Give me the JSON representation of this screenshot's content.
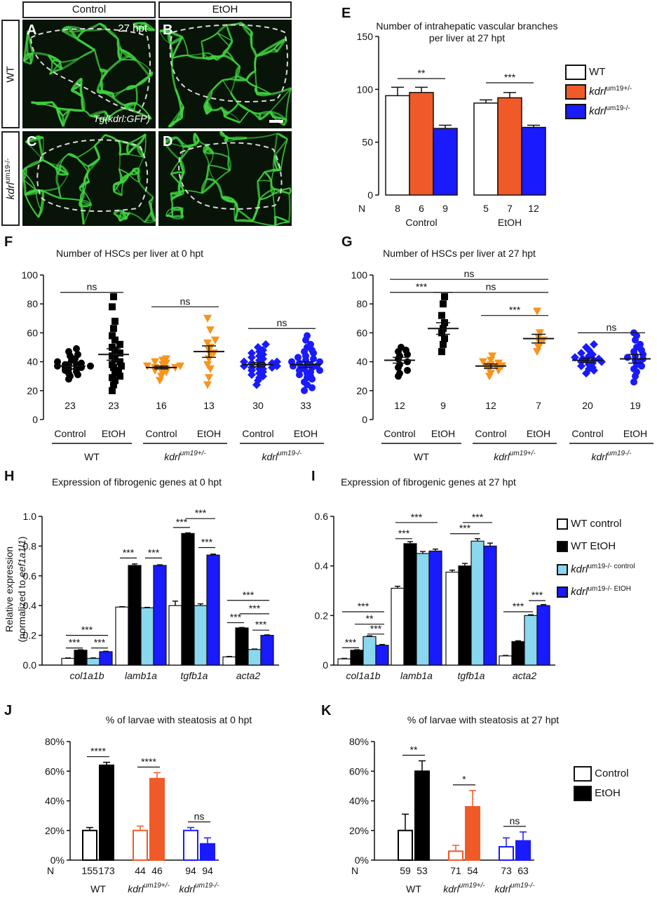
{
  "micro": {
    "col_headers": [
      "Control",
      "EtOH"
    ],
    "row_wt": "WT",
    "row_mut_gene": "kdrl",
    "row_mut_allele": "um19-/-",
    "letters": [
      "A",
      "B",
      "C",
      "D"
    ],
    "time_label": "27 hpt",
    "transgene": "Tg(kdrl:GFP)",
    "colors": {
      "vessel": "#3fd13f",
      "background": "#071407",
      "outline": "#d8d8d8"
    }
  },
  "panel_letters": {
    "E": "E",
    "F": "F",
    "G": "G",
    "H": "H",
    "I": "I",
    "J": "J",
    "K": "K"
  },
  "legend_E": [
    {
      "gene": "",
      "text": "WT",
      "color": "#ffffff"
    },
    {
      "gene": "kdrl",
      "text": "um19+/-",
      "color": "#f05a28"
    },
    {
      "gene": "kdrl",
      "text": "um19-/-",
      "color": "#1a1aff"
    }
  ],
  "legend_I": [
    {
      "gene": "",
      "text": "WT control",
      "color": "#ffffff"
    },
    {
      "gene": "",
      "text": "WT EtOH",
      "color": "#000000"
    },
    {
      "gene": "kdrl",
      "text": "um19-/- control",
      "color": "#8ad7f0"
    },
    {
      "gene": "kdrl",
      "text": "um19-/- EtOH",
      "color": "#1a1aff"
    }
  ],
  "legend_K": [
    {
      "gene": "",
      "text": "Control",
      "color": "#ffffff"
    },
    {
      "gene": "",
      "text": "EtOH",
      "color": "#000000"
    }
  ],
  "chart_data": [
    {
      "panel": "E",
      "type": "bar",
      "title": "Number of intrahepatic vascular branches per liver at 27 hpt",
      "ylim": [
        0,
        150
      ],
      "yticks": [
        0,
        50,
        100,
        150
      ],
      "groups": [
        "Control",
        "EtOH"
      ],
      "series": [
        {
          "name": "WT",
          "values": [
            94,
            87
          ],
          "errors": [
            8,
            3
          ],
          "n": [
            8,
            5
          ],
          "color": "#ffffff"
        },
        {
          "name": "kdrl um19+/-",
          "values": [
            97,
            92
          ],
          "errors": [
            5,
            5
          ],
          "n": [
            6,
            7
          ],
          "color": "#f05a28"
        },
        {
          "name": "kdrl um19-/-",
          "values": [
            63,
            64
          ],
          "errors": [
            3,
            2
          ],
          "n": [
            9,
            12
          ],
          "color": "#1a1aff"
        }
      ],
      "n_label": "N",
      "significance": [
        {
          "group": 0,
          "label": "**"
        },
        {
          "group": 1,
          "label": "***"
        }
      ]
    },
    {
      "panel": "F",
      "type": "scatter",
      "title": "Number of HSCs per liver at 0 hpt",
      "ylim": [
        0,
        100
      ],
      "yticks": [
        0,
        20,
        40,
        60,
        80,
        100
      ],
      "genotypes": [
        {
          "label": "WT",
          "italic": false
        },
        {
          "label": "kdrl",
          "sup": "um19+/-",
          "italic": true
        },
        {
          "label": "kdrl",
          "sup": "um19-/-",
          "italic": true
        }
      ],
      "conditions": [
        "Control",
        "EtOH"
      ],
      "columns": [
        {
          "n": 23,
          "mean": 37,
          "sem": 2,
          "marker": "circle",
          "color": "#000000",
          "points": [
            28,
            30,
            31,
            32,
            33,
            34,
            35,
            35,
            36,
            36,
            37,
            37,
            38,
            38,
            38,
            39,
            40,
            41,
            42,
            44,
            45,
            47,
            49
          ]
        },
        {
          "n": 23,
          "mean": 45,
          "sem": 4,
          "marker": "square",
          "color": "#000000",
          "points": [
            20,
            24,
            27,
            29,
            30,
            32,
            34,
            36,
            37,
            38,
            40,
            42,
            44,
            46,
            48,
            50,
            52,
            55,
            58,
            63,
            68,
            78,
            85
          ]
        },
        {
          "n": 16,
          "mean": 36,
          "sem": 1,
          "marker": "triangle-down",
          "color": "#f7941d",
          "points": [
            27,
            30,
            32,
            33,
            34,
            35,
            35,
            36,
            36,
            37,
            37,
            38,
            39,
            40,
            41,
            42
          ]
        },
        {
          "n": 13,
          "mean": 47,
          "sem": 4,
          "marker": "triangle-down",
          "color": "#f7941d",
          "points": [
            24,
            29,
            35,
            38,
            42,
            45,
            46,
            48,
            50,
            53,
            55,
            62,
            70
          ]
        },
        {
          "n": 30,
          "mean": 38,
          "sem": 1.5,
          "marker": "diamond",
          "color": "#1a1aff",
          "points": [
            24,
            27,
            29,
            30,
            31,
            32,
            33,
            34,
            35,
            35,
            36,
            36,
            37,
            37,
            38,
            38,
            39,
            39,
            40,
            40,
            41,
            42,
            43,
            44,
            45,
            46,
            47,
            48,
            50,
            52
          ]
        },
        {
          "n": 33,
          "mean": 38,
          "sem": 2,
          "marker": "circle",
          "color": "#1a1aff",
          "points": [
            20,
            22,
            24,
            26,
            28,
            29,
            30,
            31,
            32,
            33,
            34,
            34,
            35,
            36,
            36,
            37,
            37,
            38,
            38,
            39,
            40,
            40,
            41,
            42,
            43,
            44,
            46,
            47,
            48,
            50,
            52,
            55,
            58
          ]
        }
      ],
      "significance": [
        {
          "from": 0,
          "to": 1,
          "label": "ns",
          "y": 88
        },
        {
          "from": 2,
          "to": 3,
          "label": "ns",
          "y": 78
        },
        {
          "from": 4,
          "to": 5,
          "label": "ns",
          "y": 63
        }
      ]
    },
    {
      "panel": "G",
      "type": "scatter",
      "title": "Number of HSCs per liver at 27 hpt",
      "ylim": [
        0,
        100
      ],
      "yticks": [
        0,
        20,
        40,
        60,
        80,
        100
      ],
      "genotypes": [
        {
          "label": "WT",
          "italic": false
        },
        {
          "label": "kdrl",
          "sup": "um19+/-",
          "italic": true
        },
        {
          "label": "kdrl",
          "sup": "um19-/-",
          "italic": true
        }
      ],
      "conditions": [
        "Control",
        "EtOH"
      ],
      "columns": [
        {
          "n": 12,
          "mean": 41,
          "sem": 2,
          "marker": "circle",
          "color": "#000000",
          "points": [
            30,
            32,
            34,
            36,
            38,
            40,
            42,
            44,
            45,
            47,
            48,
            50
          ]
        },
        {
          "n": 9,
          "mean": 63,
          "sem": 4,
          "marker": "square",
          "color": "#000000",
          "points": [
            47,
            52,
            56,
            60,
            63,
            67,
            72,
            80,
            85
          ]
        },
        {
          "n": 12,
          "mean": 37,
          "sem": 1.5,
          "marker": "triangle-down",
          "color": "#f7941d",
          "points": [
            30,
            32,
            34,
            35,
            36,
            37,
            37,
            38,
            39,
            40,
            41,
            44
          ]
        },
        {
          "n": 7,
          "mean": 56,
          "sem": 3,
          "marker": "triangle-down",
          "color": "#f7941d",
          "points": [
            47,
            50,
            53,
            55,
            57,
            60,
            75
          ]
        },
        {
          "n": 20,
          "mean": 41,
          "sem": 1.5,
          "marker": "diamond",
          "color": "#1a1aff",
          "points": [
            32,
            34,
            35,
            36,
            37,
            38,
            39,
            40,
            40,
            41,
            41,
            42,
            42,
            43,
            44,
            45,
            46,
            48,
            50,
            52
          ]
        },
        {
          "n": 19,
          "mean": 42,
          "sem": 3,
          "marker": "circle",
          "color": "#1a1aff",
          "points": [
            26,
            30,
            33,
            35,
            37,
            38,
            40,
            41,
            42,
            43,
            44,
            45,
            47,
            48,
            50,
            52,
            55,
            58,
            60
          ]
        }
      ],
      "significance": [
        {
          "from": 0,
          "to": 3,
          "label": "ns",
          "y": 97
        },
        {
          "from": 0,
          "to": 1,
          "label": "***",
          "y": 88
        },
        {
          "from": 1,
          "to": 3,
          "label": "ns",
          "y": 88
        },
        {
          "from": 2,
          "to": 3,
          "label": "***",
          "y": 72
        },
        {
          "from": 4,
          "to": 5,
          "label": "ns",
          "y": 60
        }
      ]
    },
    {
      "panel": "H",
      "type": "bar",
      "title": "Expression of fibrogenic genes at 0 hpt",
      "ylabel": "Relative expression",
      "ylabel2_prefix": "(normalized to ",
      "ylabel2_gene": "eef1a1l1",
      "ylabel2_suffix": ")",
      "ylim": [
        0,
        1.0
      ],
      "yticks": [
        0.0,
        0.2,
        0.4,
        0.6,
        0.8,
        1.0
      ],
      "tick_labels": [
        "0.0",
        "0.2",
        "0.4",
        "0.6",
        "0.8",
        "1.0"
      ],
      "categories": [
        "col1a1b",
        "lamb1a",
        "tgfb1a",
        "acta2"
      ],
      "series": [
        {
          "name": "WT control",
          "values": [
            0.045,
            0.39,
            0.4,
            0.055
          ],
          "errors": [
            0.003,
            0.003,
            0.03,
            0.003
          ],
          "color": "#ffffff"
        },
        {
          "name": "WT EtOH",
          "values": [
            0.1,
            0.67,
            0.885,
            0.25
          ],
          "errors": [
            0.003,
            0.01,
            0.004,
            0.003
          ],
          "color": "#000000"
        },
        {
          "name": "kdrl um19-/- control",
          "values": [
            0.045,
            0.385,
            0.4,
            0.105
          ],
          "errors": [
            0.003,
            0.003,
            0.012,
            0.003
          ],
          "color": "#8ad7f0"
        },
        {
          "name": "kdrl um19-/- EtOH",
          "values": [
            0.09,
            0.67,
            0.74,
            0.2
          ],
          "errors": [
            0.003,
            0.004,
            0.006,
            0.003
          ],
          "color": "#1a1aff"
        }
      ],
      "significance": [
        {
          "cat": 0,
          "from": 0,
          "to": 1,
          "label": "***",
          "y": 0.115
        },
        {
          "cat": 0,
          "from": 2,
          "to": 3,
          "label": "***",
          "y": 0.115
        },
        {
          "cat": 0,
          "from": 0,
          "to": 3,
          "label": "***",
          "y": 0.2
        },
        {
          "cat": 1,
          "from": 0,
          "to": 1,
          "label": "***",
          "y": 0.72
        },
        {
          "cat": 1,
          "from": 2,
          "to": 3,
          "label": "***",
          "y": 0.72
        },
        {
          "cat": 2,
          "from": 0,
          "to": 1,
          "label": "***",
          "y": 0.925
        },
        {
          "cat": 2,
          "from": 1,
          "to": 3,
          "label": "***",
          "y": 0.985
        },
        {
          "cat": 2,
          "from": 2,
          "to": 3,
          "label": "***",
          "y": 0.79
        },
        {
          "cat": 3,
          "from": 0,
          "to": 1,
          "label": "***",
          "y": 0.285
        },
        {
          "cat": 3,
          "from": 2,
          "to": 3,
          "label": "***",
          "y": 0.235
        },
        {
          "cat": 3,
          "from": 1,
          "to": 3,
          "label": "***",
          "y": 0.345
        },
        {
          "cat": 3,
          "from": 0,
          "to": 3,
          "label": "***",
          "y": 0.435
        }
      ]
    },
    {
      "panel": "I",
      "type": "bar",
      "title": "Expression of fibrogenic genes at 27 hpt",
      "ylim": [
        0,
        0.6
      ],
      "yticks": [
        0.0,
        0.2,
        0.4,
        0.6
      ],
      "tick_labels": [
        "0",
        "0.2",
        "0.4",
        "0.6"
      ],
      "categories": [
        "col1a1b",
        "lamb1a",
        "tgfb1a",
        "acta2"
      ],
      "series": [
        {
          "name": "WT control",
          "values": [
            0.025,
            0.31,
            0.375,
            0.037
          ],
          "errors": [
            0.002,
            0.008,
            0.008,
            0.002
          ],
          "color": "#ffffff"
        },
        {
          "name": "WT EtOH",
          "values": [
            0.06,
            0.49,
            0.4,
            0.095
          ],
          "errors": [
            0.002,
            0.008,
            0.01,
            0.003
          ],
          "color": "#000000"
        },
        {
          "name": "kdrl um19-/- control",
          "values": [
            0.115,
            0.45,
            0.5,
            0.2
          ],
          "errors": [
            0.003,
            0.008,
            0.01,
            0.003
          ],
          "color": "#8ad7f0"
        },
        {
          "name": "kdrl um19-/- EtOH",
          "values": [
            0.08,
            0.46,
            0.48,
            0.24
          ],
          "errors": [
            0.003,
            0.008,
            0.012,
            0.004
          ],
          "color": "#1a1aff"
        }
      ],
      "significance": [
        {
          "cat": 0,
          "from": 0,
          "to": 1,
          "label": "***",
          "y": 0.07
        },
        {
          "cat": 0,
          "from": 2,
          "to": 3,
          "label": "***",
          "y": 0.125
        },
        {
          "cat": 0,
          "from": 1,
          "to": 3,
          "label": "**",
          "y": 0.165
        },
        {
          "cat": 0,
          "from": 0,
          "to": 3,
          "label": "***",
          "y": 0.215
        },
        {
          "cat": 1,
          "from": 0,
          "to": 1,
          "label": "***",
          "y": 0.51
        },
        {
          "cat": 1,
          "from": 0,
          "to": 3,
          "label": "***",
          "y": 0.575
        },
        {
          "cat": 2,
          "from": 0,
          "to": 2,
          "label": "***",
          "y": 0.53
        },
        {
          "cat": 2,
          "from": 1,
          "to": 3,
          "label": "***",
          "y": 0.575
        },
        {
          "cat": 3,
          "from": 0,
          "to": 2,
          "label": "***",
          "y": 0.215
        },
        {
          "cat": 3,
          "from": 2,
          "to": 3,
          "label": "***",
          "y": 0.26
        }
      ]
    },
    {
      "panel": "J",
      "type": "bar",
      "title": "% of larvae with steatosis at 0 hpt",
      "ylim": [
        0,
        80
      ],
      "yticks": [
        0,
        20,
        40,
        60,
        80
      ],
      "tick_labels": [
        "0%",
        "20%",
        "40%",
        "60%",
        "80%"
      ],
      "n_label": "N",
      "groups": [
        {
          "label": "WT",
          "italic": false,
          "color": "#000000",
          "n": [
            155,
            173
          ],
          "values": [
            20,
            64
          ],
          "errors": [
            2,
            2
          ],
          "sig": "****"
        },
        {
          "label": "kdrl",
          "sup": "um19+/-",
          "italic": true,
          "color": "#f05a28",
          "n": [
            44,
            46
          ],
          "values": [
            20,
            55
          ],
          "errors": [
            3,
            4
          ],
          "sig": "****"
        },
        {
          "label": "kdrl",
          "sup": "um19-/-",
          "italic": true,
          "color": "#1a1aff",
          "n": [
            94,
            94
          ],
          "values": [
            20,
            11
          ],
          "errors": [
            2,
            4
          ],
          "sig": "ns"
        }
      ]
    },
    {
      "panel": "K",
      "type": "bar",
      "title": "% of larvae with steatosis at 27 hpt",
      "ylim": [
        0,
        80
      ],
      "yticks": [
        0,
        20,
        40,
        60,
        80
      ],
      "tick_labels": [
        "0%",
        "20%",
        "40%",
        "60%",
        "80%"
      ],
      "n_label": "N",
      "groups": [
        {
          "label": "WT",
          "italic": false,
          "color": "#000000",
          "n": [
            59,
            53
          ],
          "values": [
            20,
            60
          ],
          "errors": [
            11,
            7
          ],
          "sig": "**"
        },
        {
          "label": "kdrl",
          "sup": "um19+/-",
          "italic": true,
          "color": "#f05a28",
          "n": [
            71,
            54
          ],
          "values": [
            6,
            36
          ],
          "errors": [
            4,
            11
          ],
          "sig": "*"
        },
        {
          "label": "kdrl",
          "sup": "um19-/-",
          "italic": true,
          "color": "#1a1aff",
          "n": [
            73,
            63
          ],
          "values": [
            9,
            13
          ],
          "errors": [
            6,
            6
          ],
          "sig": "ns"
        }
      ]
    }
  ]
}
